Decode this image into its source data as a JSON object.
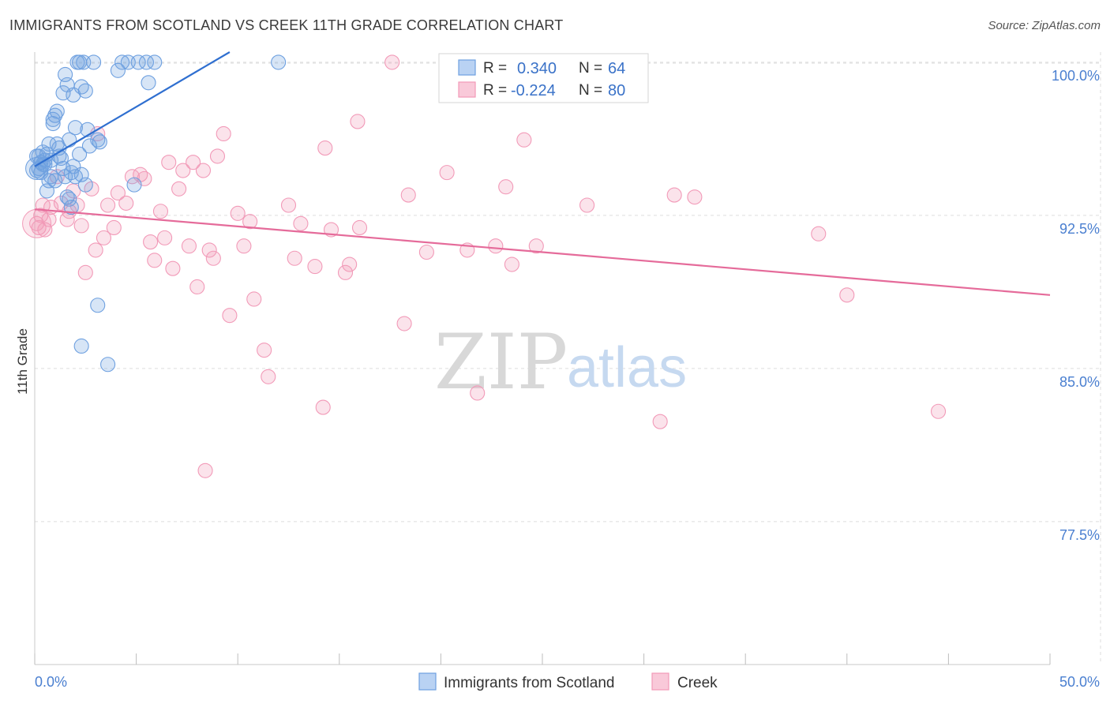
{
  "header": {
    "title": "IMMIGRANTS FROM SCOTLAND VS CREEK 11TH GRADE CORRELATION CHART",
    "source": "Source: ZipAtlas.com"
  },
  "watermark": {
    "zip": "ZIP",
    "atlas": "atlas"
  },
  "legend": {
    "rows": [
      {
        "r_label": "R =",
        "r_value": "0.340",
        "n_label": "N =",
        "n_value": "64"
      },
      {
        "r_label": "R =",
        "r_value": "-0.224",
        "n_label": "N =",
        "n_value": "80"
      }
    ]
  },
  "bottom_legend": [
    "Immigrants from Scotland",
    "Creek"
  ],
  "chart_data": {
    "type": "scatter",
    "ylabel": "11th Grade",
    "xlim": [
      0,
      50
    ],
    "ylim": [
      70.5,
      100.5
    ],
    "x_tick_labels": [
      "0.0%",
      "50.0%"
    ],
    "y_ticks": [
      100.0,
      92.5,
      85.0,
      77.5
    ],
    "y_tick_labels": [
      "100.0%",
      "92.5%",
      "85.0%",
      "77.5%"
    ],
    "grid": true,
    "legend_placement": "top-center",
    "colors": {
      "scotland": "#6ea0e0",
      "scotland_line": "#2f6fd0",
      "creek": "#f29ab8",
      "creek_line": "#e56b9a"
    },
    "series": [
      {
        "name": "Immigrants from Scotland",
        "color": "#6ea0e0",
        "trend": {
          "x": [
            0,
            9.6
          ],
          "y": [
            94.9,
            100.5
          ]
        },
        "points": [
          [
            0.1,
            95.4
          ],
          [
            0.2,
            94.8
          ],
          [
            0.3,
            95.1
          ],
          [
            0.4,
            95.6
          ],
          [
            0.5,
            95.0
          ],
          [
            0.6,
            95.5
          ],
          [
            0.7,
            94.2
          ],
          [
            0.8,
            95.2
          ],
          [
            0.9,
            97.2
          ],
          [
            1.0,
            97.4
          ],
          [
            1.1,
            96.0
          ],
          [
            1.2,
            95.8
          ],
          [
            1.3,
            95.3
          ],
          [
            1.4,
            98.5
          ],
          [
            1.5,
            99.4
          ],
          [
            1.6,
            98.9
          ],
          [
            1.7,
            96.2
          ],
          [
            1.8,
            94.6
          ],
          [
            1.9,
            98.4
          ],
          [
            2.0,
            96.8
          ],
          [
            2.1,
            100.0
          ],
          [
            2.2,
            100.0
          ],
          [
            2.3,
            98.8
          ],
          [
            2.4,
            100.0
          ],
          [
            2.5,
            98.6
          ],
          [
            2.6,
            96.7
          ],
          [
            2.7,
            95.9
          ],
          [
            3.1,
            96.2
          ],
          [
            2.0,
            94.4
          ],
          [
            1.6,
            93.4
          ],
          [
            2.3,
            94.5
          ],
          [
            2.5,
            94.0
          ],
          [
            1.8,
            92.9
          ],
          [
            0.8,
            94.4
          ],
          [
            0.6,
            93.7
          ],
          [
            3.2,
            96.1
          ],
          [
            4.1,
            99.6
          ],
          [
            4.3,
            100.0
          ],
          [
            4.6,
            100.0
          ],
          [
            5.1,
            100.0
          ],
          [
            5.5,
            100.0
          ],
          [
            5.6,
            99.0
          ],
          [
            5.9,
            100.0
          ],
          [
            12.0,
            100.0
          ],
          [
            0.9,
            97.0
          ],
          [
            1.1,
            97.6
          ],
          [
            1.2,
            95.4
          ],
          [
            1.4,
            94.8
          ],
          [
            0.3,
            94.6
          ],
          [
            0.5,
            95.2
          ],
          [
            1.9,
            94.9
          ],
          [
            2.2,
            95.5
          ],
          [
            0.7,
            96.0
          ],
          [
            1.5,
            94.4
          ],
          [
            3.1,
            88.1
          ],
          [
            2.3,
            86.1
          ],
          [
            3.6,
            85.2
          ],
          [
            4.9,
            94.0
          ],
          [
            1.0,
            94.2
          ],
          [
            0.2,
            95.4
          ],
          [
            0.4,
            95.0
          ],
          [
            1.7,
            93.3
          ],
          [
            2.9,
            100.0
          ],
          [
            0.1,
            94.7
          ]
        ]
      },
      {
        "name": "Creek",
        "color": "#f29ab8",
        "trend": {
          "x": [
            0,
            50
          ],
          "y": [
            92.8,
            88.6
          ]
        },
        "points": [
          [
            0.1,
            92.1
          ],
          [
            0.2,
            91.9
          ],
          [
            0.3,
            92.5
          ],
          [
            0.4,
            93.0
          ],
          [
            0.5,
            91.8
          ],
          [
            0.7,
            92.3
          ],
          [
            0.8,
            92.9
          ],
          [
            1.1,
            94.4
          ],
          [
            1.3,
            93.1
          ],
          [
            1.6,
            92.3
          ],
          [
            1.7,
            92.7
          ],
          [
            1.9,
            93.7
          ],
          [
            2.1,
            93.0
          ],
          [
            2.3,
            92.0
          ],
          [
            2.5,
            89.7
          ],
          [
            2.8,
            93.8
          ],
          [
            3.0,
            90.8
          ],
          [
            3.1,
            96.5
          ],
          [
            3.4,
            91.4
          ],
          [
            3.6,
            93.0
          ],
          [
            3.9,
            91.9
          ],
          [
            4.1,
            93.6
          ],
          [
            4.5,
            93.1
          ],
          [
            4.8,
            94.4
          ],
          [
            5.2,
            94.5
          ],
          [
            5.4,
            94.3
          ],
          [
            5.7,
            91.2
          ],
          [
            5.9,
            90.3
          ],
          [
            6.2,
            92.7
          ],
          [
            6.4,
            91.4
          ],
          [
            6.6,
            95.1
          ],
          [
            6.8,
            89.9
          ],
          [
            7.1,
            93.8
          ],
          [
            7.3,
            94.7
          ],
          [
            7.6,
            91.0
          ],
          [
            7.8,
            95.1
          ],
          [
            8.0,
            89.0
          ],
          [
            8.3,
            94.7
          ],
          [
            8.6,
            90.8
          ],
          [
            8.8,
            90.4
          ],
          [
            9.0,
            95.4
          ],
          [
            9.3,
            96.5
          ],
          [
            9.6,
            87.6
          ],
          [
            10.0,
            92.6
          ],
          [
            10.3,
            91.0
          ],
          [
            10.6,
            92.2
          ],
          [
            10.8,
            88.4
          ],
          [
            11.3,
            85.9
          ],
          [
            11.5,
            84.6
          ],
          [
            12.5,
            93.0
          ],
          [
            12.8,
            90.4
          ],
          [
            13.1,
            92.1
          ],
          [
            13.8,
            90.0
          ],
          [
            14.2,
            83.1
          ],
          [
            14.3,
            95.8
          ],
          [
            14.6,
            91.8
          ],
          [
            15.3,
            89.7
          ],
          [
            15.5,
            90.1
          ],
          [
            15.9,
            97.1
          ],
          [
            16.0,
            91.9
          ],
          [
            17.6,
            100.0
          ],
          [
            18.2,
            87.2
          ],
          [
            18.4,
            93.5
          ],
          [
            19.3,
            90.7
          ],
          [
            20.3,
            94.6
          ],
          [
            21.3,
            90.8
          ],
          [
            21.8,
            83.8
          ],
          [
            22.7,
            91.0
          ],
          [
            23.2,
            93.9
          ],
          [
            23.5,
            90.1
          ],
          [
            24.1,
            96.2
          ],
          [
            24.7,
            91.0
          ],
          [
            27.2,
            93.0
          ],
          [
            30.8,
            82.4
          ],
          [
            31.5,
            93.5
          ],
          [
            32.5,
            93.4
          ],
          [
            38.6,
            91.6
          ],
          [
            40.0,
            88.6
          ],
          [
            44.5,
            82.9
          ],
          [
            8.4,
            80.0
          ]
        ]
      }
    ]
  }
}
